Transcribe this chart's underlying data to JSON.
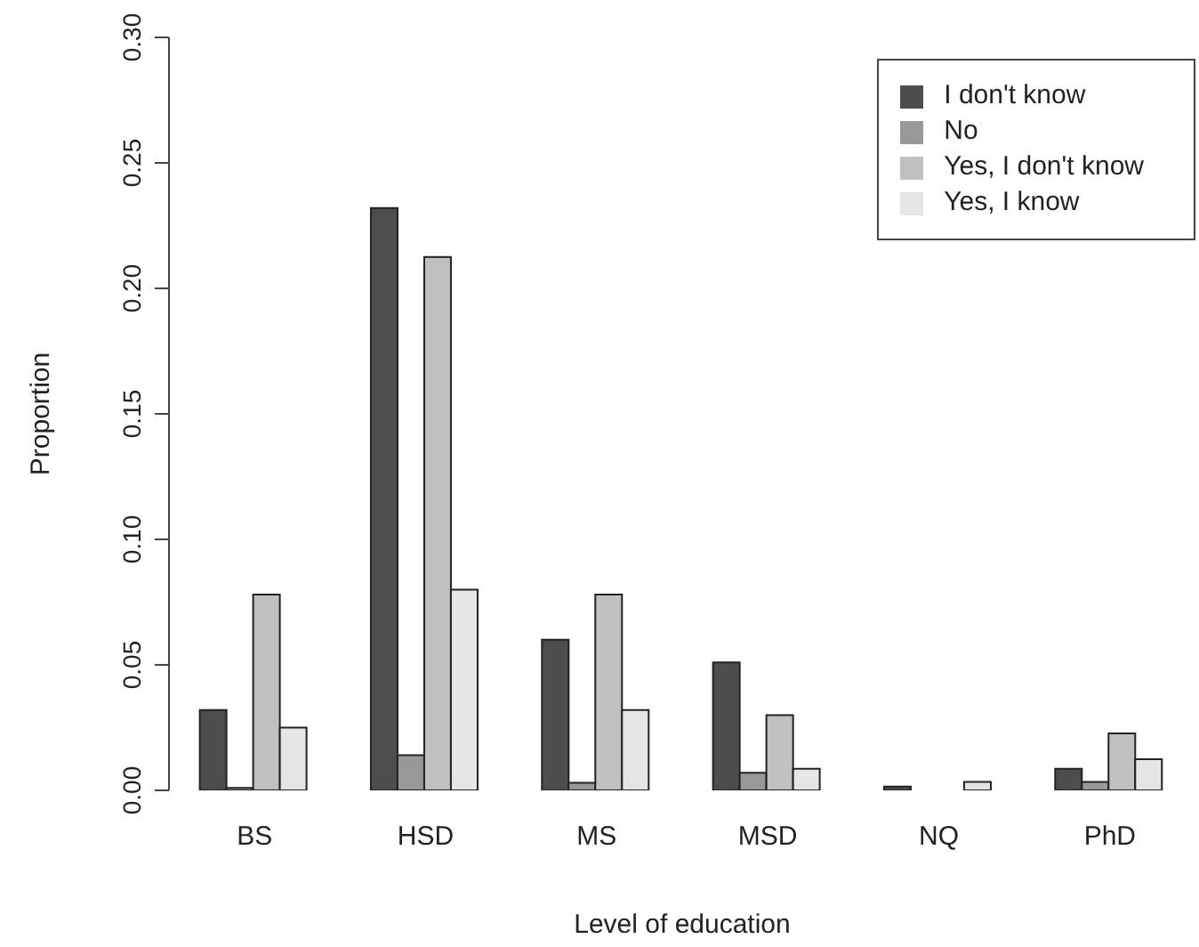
{
  "chart_data": {
    "type": "bar",
    "xlabel": "Level of education",
    "ylabel": "Proportion",
    "categories": [
      "BS",
      "HSD",
      "MS",
      "MSD",
      "NQ",
      "PhD"
    ],
    "series": [
      {
        "name": "I don't know",
        "color": "#4d4d4d",
        "values": [
          0.032,
          0.232,
          0.06,
          0.051,
          0.0015,
          0.0086
        ]
      },
      {
        "name": "No",
        "color": "#999999",
        "values": [
          0.001,
          0.014,
          0.003,
          0.007,
          0,
          0.0034
        ]
      },
      {
        "name": "Yes, I don't know",
        "color": "#c0c0c0",
        "values": [
          0.078,
          0.2125,
          0.078,
          0.03,
          0,
          0.0227
        ]
      },
      {
        "name": "Yes, I know",
        "color": "#e6e6e6",
        "values": [
          0.025,
          0.08,
          0.032,
          0.0086,
          0.0034,
          0.0124
        ]
      }
    ],
    "ylim": [
      0,
      0.3
    ],
    "yticks": [
      {
        "value": 0,
        "label": "0.00"
      },
      {
        "value": 0.05,
        "label": "0.05"
      },
      {
        "value": 0.1,
        "label": "0.10"
      },
      {
        "value": 0.15,
        "label": "0.15"
      },
      {
        "value": 0.2,
        "label": "0.20"
      },
      {
        "value": 0.25,
        "label": "0.25"
      },
      {
        "value": 0.3,
        "label": "0.30"
      }
    ],
    "grid": false,
    "legend": "top right"
  }
}
